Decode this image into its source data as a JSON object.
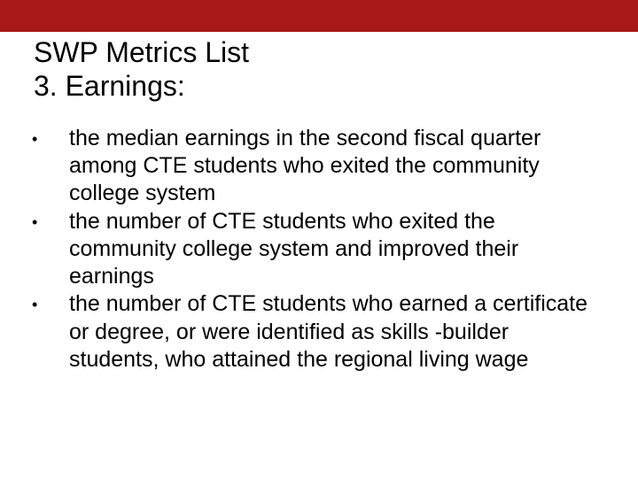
{
  "colors": {
    "band": "#a81818",
    "background": "#ffffff",
    "text": "#000000"
  },
  "title": {
    "line1": "SWP Metrics List",
    "line2": "3. Earnings:"
  },
  "bullets": [
    {
      "marker": "•",
      "text": "the median earnings in the second fiscal quarter among CTE students who exited the community college system"
    },
    {
      "marker": "•",
      "text": "the number of CTE students who exited the community college system and improved their earnings"
    },
    {
      "marker": "•",
      "text": "the number of CTE students who earned a certificate or degree, or were identified as skills -builder students, who attained the regional living wage"
    }
  ],
  "typography": {
    "title_fontsize": 32,
    "body_fontsize": 25,
    "font_family": "Arial"
  }
}
